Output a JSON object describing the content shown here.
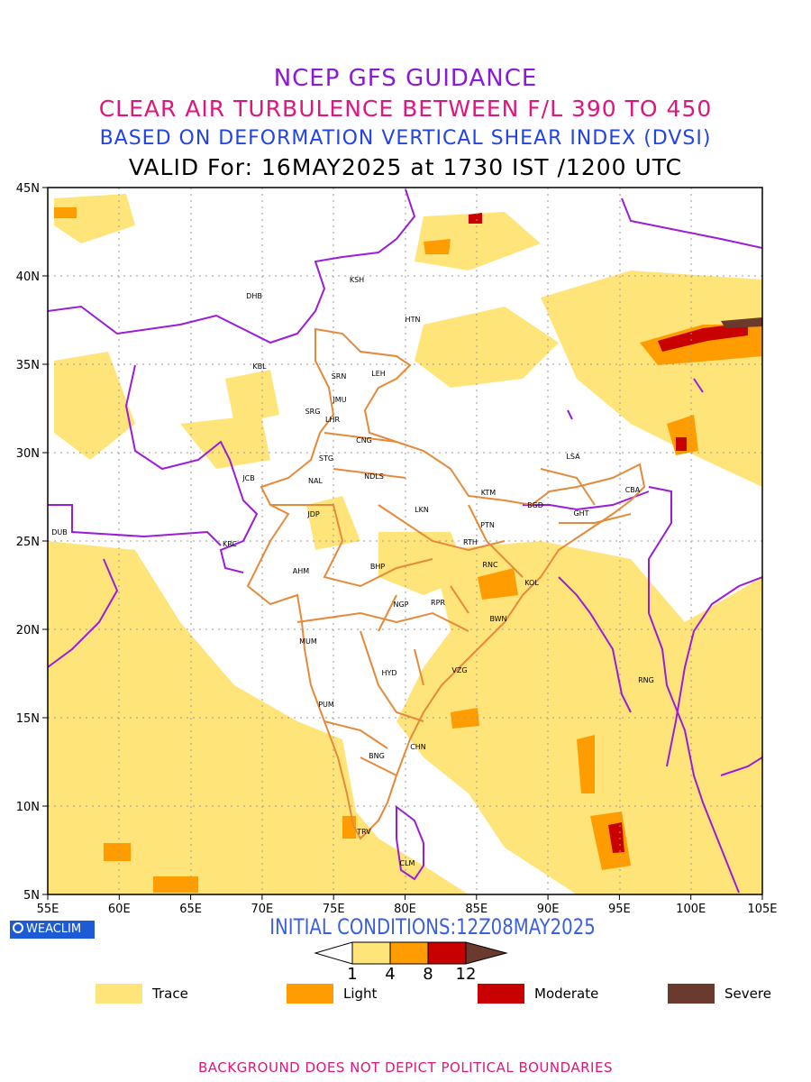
{
  "titles": {
    "line1": "NCEP GFS GUIDANCE",
    "line2": "CLEAR AIR TURBULENCE BETWEEN F/L 390 TO 450",
    "line3": "BASED ON DEFORMATION VERTICAL SHEAR INDEX (DVSI)",
    "line4": "VALID For: 16MAY2025 at 1730 IST /1200 UTC"
  },
  "axes": {
    "lat_labels": [
      "45N",
      "40N",
      "35N",
      "30N",
      "25N",
      "20N",
      "15N",
      "10N",
      "5N"
    ],
    "lon_labels": [
      "55E",
      "60E",
      "65E",
      "70E",
      "75E",
      "80E",
      "85E",
      "90E",
      "95E",
      "100E",
      "105E"
    ]
  },
  "stations": [
    {
      "code": "KSH"
    },
    {
      "code": "DHB"
    },
    {
      "code": "HTN"
    },
    {
      "code": "KBL"
    },
    {
      "code": "SRN"
    },
    {
      "code": "LEH"
    },
    {
      "code": "JMU"
    },
    {
      "code": "SRG"
    },
    {
      "code": "LHR"
    },
    {
      "code": "CNG"
    },
    {
      "code": "STG"
    },
    {
      "code": "LSA"
    },
    {
      "code": "JCB"
    },
    {
      "code": "NAL"
    },
    {
      "code": "NDLS"
    },
    {
      "code": "KTM"
    },
    {
      "code": "CBA"
    },
    {
      "code": "BGD"
    },
    {
      "code": "GHT"
    },
    {
      "code": "LKN"
    },
    {
      "code": "JDP"
    },
    {
      "code": "PTN"
    },
    {
      "code": "DUB"
    },
    {
      "code": "KRC"
    },
    {
      "code": "RTH"
    },
    {
      "code": "BHP"
    },
    {
      "code": "AHM"
    },
    {
      "code": "RNC"
    },
    {
      "code": "KOL"
    },
    {
      "code": "NGP"
    },
    {
      "code": "RPR"
    },
    {
      "code": "BWN"
    },
    {
      "code": "MUM"
    },
    {
      "code": "HYD"
    },
    {
      "code": "VZG"
    },
    {
      "code": "RNG"
    },
    {
      "code": "PUM"
    },
    {
      "code": "CHN"
    },
    {
      "code": "BNG"
    },
    {
      "code": "TRV"
    },
    {
      "code": "CLM"
    }
  ],
  "logo": {
    "text": "WEACLIM"
  },
  "initial_conditions": "INITIAL CONDITIONS:12Z08MAY2025",
  "colorbar": {
    "ticks": [
      "1",
      "4",
      "8",
      "12"
    ],
    "colors": [
      "#ffe47a",
      "#ff9c00",
      "#c80000",
      "#6b3a2e"
    ]
  },
  "legend": [
    {
      "label": "Trace",
      "color": "#ffe47a"
    },
    {
      "label": "Light",
      "color": "#ff9c00"
    },
    {
      "label": "Moderate",
      "color": "#c80000"
    },
    {
      "label": "Severe",
      "color": "#6b3a2e"
    }
  ],
  "footer": "BACKGROUND DOES NOT DEPICT POLITICAL BOUNDARIES"
}
